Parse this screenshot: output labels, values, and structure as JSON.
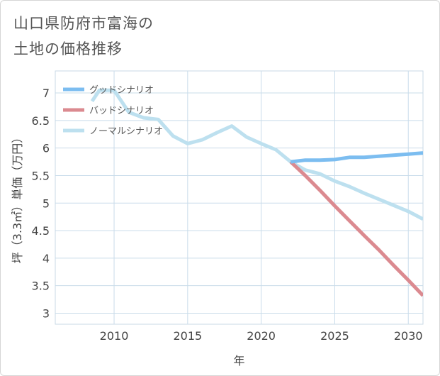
{
  "title": {
    "line1": "山口県防府市富海の",
    "line2": "土地の価格推移"
  },
  "chart_data": {
    "type": "line",
    "title": "山口県防府市富海の土地の価格推移",
    "xlabel": "年",
    "ylabel": "坪（3.3㎡）単価（万円）",
    "xlim": [
      2006,
      2031
    ],
    "ylim": [
      2.8,
      7.4
    ],
    "xticks": [
      2010,
      2015,
      2020,
      2025,
      2030
    ],
    "yticks": [
      3,
      3.5,
      4,
      4.5,
      5,
      5.5,
      6,
      6.5,
      7
    ],
    "grid": true,
    "legend_position": "top-left",
    "series": [
      {
        "name": "グッドシナリオ",
        "color": "#7cbdf0",
        "points": [
          [
            2022,
            5.75
          ],
          [
            2023,
            5.78
          ],
          [
            2024,
            5.78
          ],
          [
            2025,
            5.79
          ],
          [
            2026,
            5.83
          ],
          [
            2027,
            5.83
          ],
          [
            2028,
            5.85
          ],
          [
            2029,
            5.87
          ],
          [
            2030,
            5.89
          ],
          [
            2031,
            5.91
          ]
        ]
      },
      {
        "name": "バッドシナリオ",
        "color": "#db8a90",
        "points": [
          [
            2022,
            5.75
          ],
          [
            2023,
            5.5
          ],
          [
            2024,
            5.23
          ],
          [
            2025,
            4.95
          ],
          [
            2026,
            4.68
          ],
          [
            2027,
            4.41
          ],
          [
            2028,
            4.15
          ],
          [
            2029,
            3.87
          ],
          [
            2030,
            3.6
          ],
          [
            2031,
            3.32
          ]
        ]
      },
      {
        "name": "ノーマルシナリオ",
        "color": "#bde0ef",
        "points": [
          [
            2008.5,
            6.85
          ],
          [
            2009,
            7.05
          ],
          [
            2010,
            7.05
          ],
          [
            2011,
            6.65
          ],
          [
            2012,
            6.55
          ],
          [
            2013,
            6.52
          ],
          [
            2014,
            6.22
          ],
          [
            2015,
            6.08
          ],
          [
            2016,
            6.15
          ],
          [
            2017,
            6.28
          ],
          [
            2018,
            6.4
          ],
          [
            2019,
            6.2
          ],
          [
            2020,
            6.08
          ],
          [
            2021,
            5.97
          ],
          [
            2022,
            5.75
          ],
          [
            2023,
            5.6
          ],
          [
            2024,
            5.53
          ],
          [
            2025,
            5.4
          ],
          [
            2026,
            5.3
          ],
          [
            2027,
            5.18
          ],
          [
            2028,
            5.07
          ],
          [
            2029,
            4.96
          ],
          [
            2030,
            4.85
          ],
          [
            2031,
            4.71
          ]
        ]
      }
    ]
  }
}
